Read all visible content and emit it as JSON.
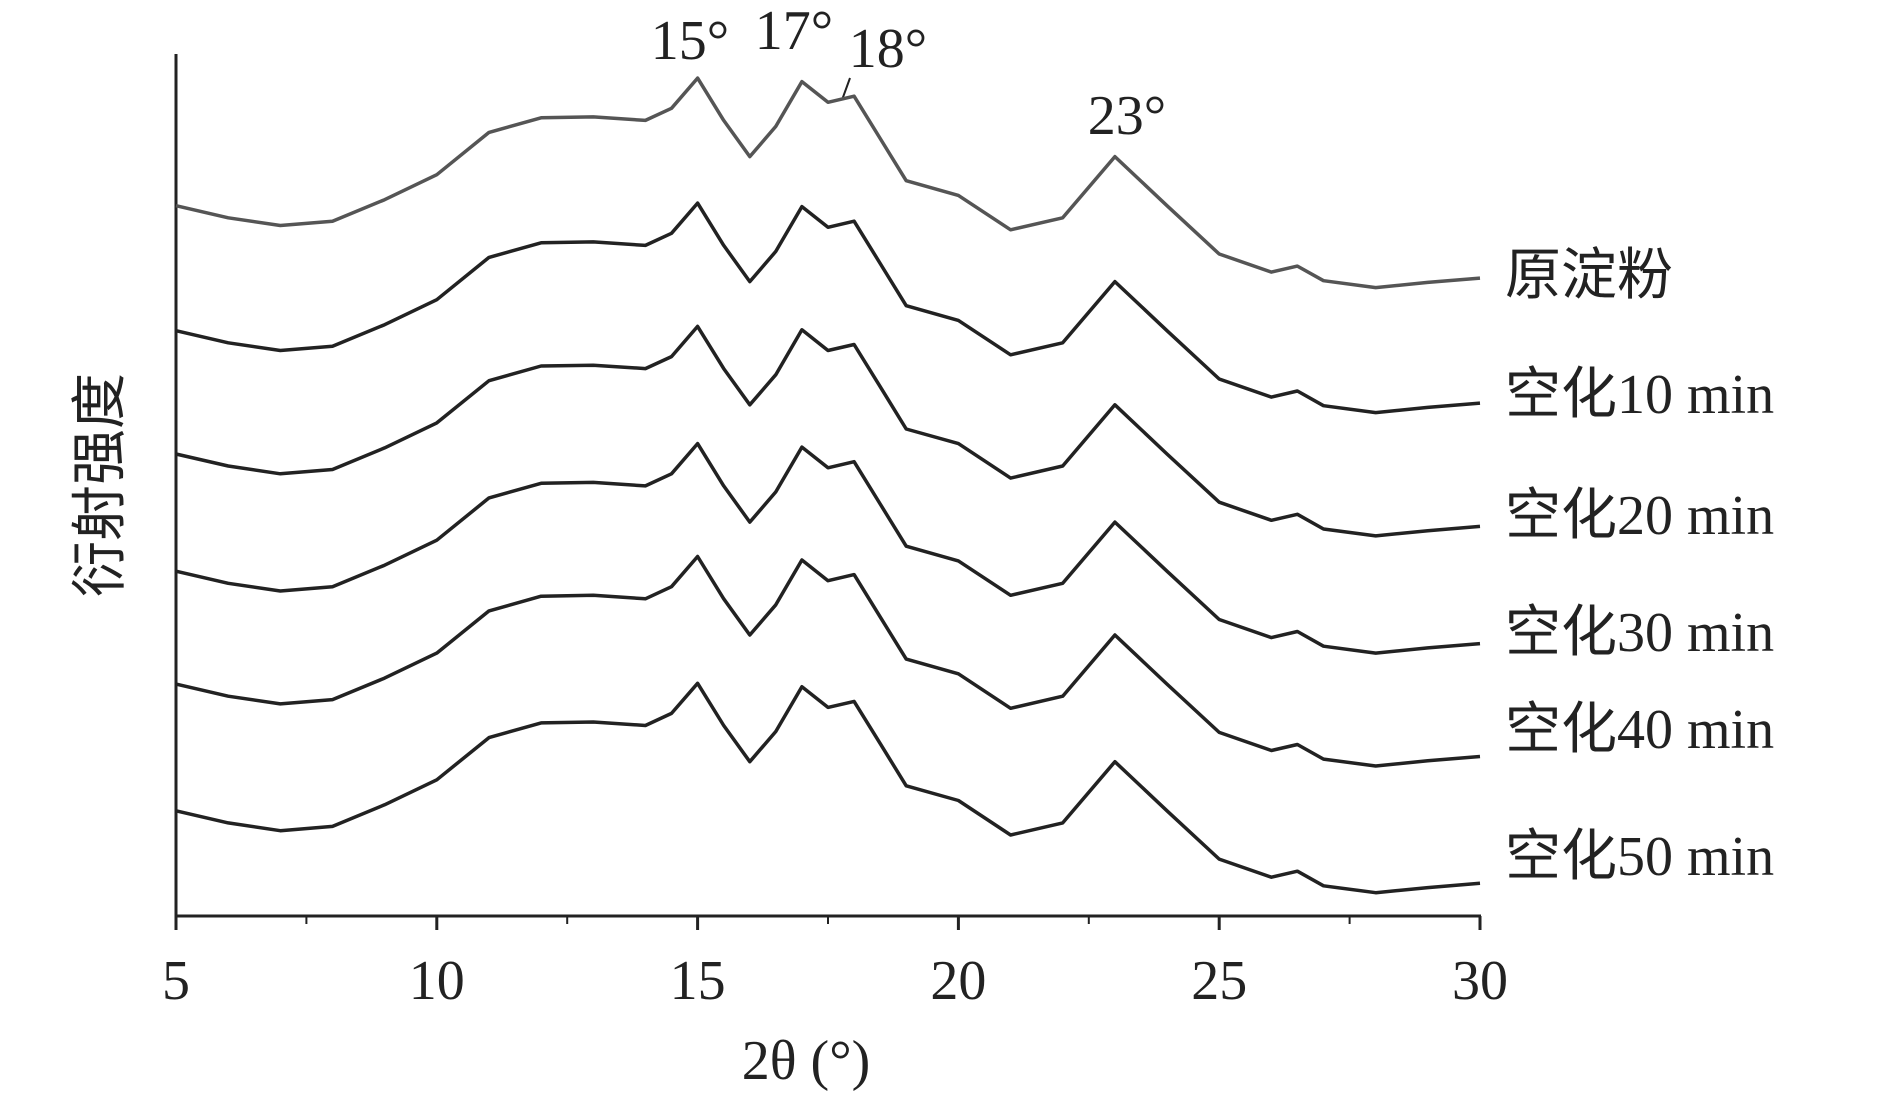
{
  "chart_data": {
    "type": "line",
    "xlabel": "2θ (°)",
    "ylabel": "衍射强度",
    "xlim": [
      5,
      30
    ],
    "xticks": [
      5,
      10,
      15,
      20,
      25,
      30
    ],
    "xminorticks": [
      7.5,
      12.5,
      17.5,
      22.5,
      27.5
    ],
    "ylim": [
      0,
      100
    ],
    "annotations": [
      "15°",
      "17°",
      "18°",
      "23°"
    ],
    "x": [
      5,
      6,
      7,
      8,
      9,
      10,
      11,
      12,
      13,
      14,
      14.5,
      15,
      15.5,
      16,
      16.5,
      17,
      17.5,
      18,
      18.5,
      19,
      20,
      21,
      22,
      23,
      24,
      25,
      26,
      26.5,
      27,
      28,
      29,
      30
    ],
    "series": [
      {
        "name": "原淀粉",
        "color": "#555555",
        "values": [
          82.4,
          81.0,
          80.1,
          80.6,
          83.1,
          86.0,
          90.9,
          92.6,
          92.7,
          92.3,
          93.7,
          97.2,
          92.3,
          88.1,
          91.6,
          96.8,
          94.4,
          95.1,
          90.2,
          85.3,
          83.6,
          79.6,
          81.0,
          88.1,
          82.4,
          76.8,
          74.7,
          75.4,
          73.7,
          72.9,
          73.5,
          74.0
        ]
      },
      {
        "name": "空化10 min",
        "color": "#222222",
        "values": [
          67.9,
          66.5,
          65.6,
          66.1,
          68.6,
          71.5,
          76.4,
          78.1,
          78.2,
          77.8,
          79.2,
          82.7,
          77.8,
          73.6,
          77.1,
          82.3,
          79.9,
          80.6,
          75.7,
          70.8,
          69.1,
          65.1,
          66.5,
          73.6,
          67.9,
          62.3,
          60.2,
          60.9,
          59.2,
          58.4,
          59.0,
          59.5
        ]
      },
      {
        "name": "空化20 min",
        "color": "#222222",
        "values": [
          53.6,
          52.2,
          51.3,
          51.8,
          54.3,
          57.2,
          62.1,
          63.8,
          63.9,
          63.5,
          64.9,
          68.4,
          63.5,
          59.3,
          62.8,
          68.0,
          65.6,
          66.3,
          61.4,
          56.5,
          54.8,
          50.8,
          52.2,
          59.3,
          53.6,
          48.0,
          45.9,
          46.6,
          44.9,
          44.1,
          44.7,
          45.2
        ]
      },
      {
        "name": "空化30 min",
        "color": "#222222",
        "values": [
          40.0,
          38.6,
          37.7,
          38.2,
          40.7,
          43.6,
          48.5,
          50.2,
          50.3,
          49.9,
          51.3,
          54.8,
          49.9,
          45.7,
          49.2,
          54.4,
          52.0,
          52.7,
          47.8,
          42.9,
          41.2,
          37.2,
          38.6,
          45.7,
          40.0,
          34.4,
          32.3,
          33.0,
          31.3,
          30.5,
          31.1,
          31.6
        ]
      },
      {
        "name": "空化40 min",
        "color": "#222222",
        "values": [
          26.9,
          25.5,
          24.6,
          25.1,
          27.6,
          30.5,
          35.4,
          37.1,
          37.2,
          36.8,
          38.2,
          41.7,
          36.8,
          32.6,
          36.1,
          41.3,
          38.9,
          39.6,
          34.7,
          29.8,
          28.1,
          24.1,
          25.5,
          32.6,
          26.9,
          21.3,
          19.2,
          19.9,
          18.2,
          17.4,
          18.0,
          18.5
        ]
      },
      {
        "name": "空化50 min",
        "color": "#222222",
        "values": [
          12.2,
          10.8,
          9.9,
          10.4,
          12.9,
          15.8,
          20.7,
          22.4,
          22.5,
          22.1,
          23.5,
          27.0,
          22.1,
          17.9,
          21.4,
          26.6,
          24.2,
          24.9,
          20.0,
          15.1,
          13.4,
          9.4,
          10.8,
          17.9,
          12.2,
          6.6,
          4.5,
          5.2,
          3.5,
          2.7,
          3.3,
          3.8
        ]
      }
    ]
  }
}
